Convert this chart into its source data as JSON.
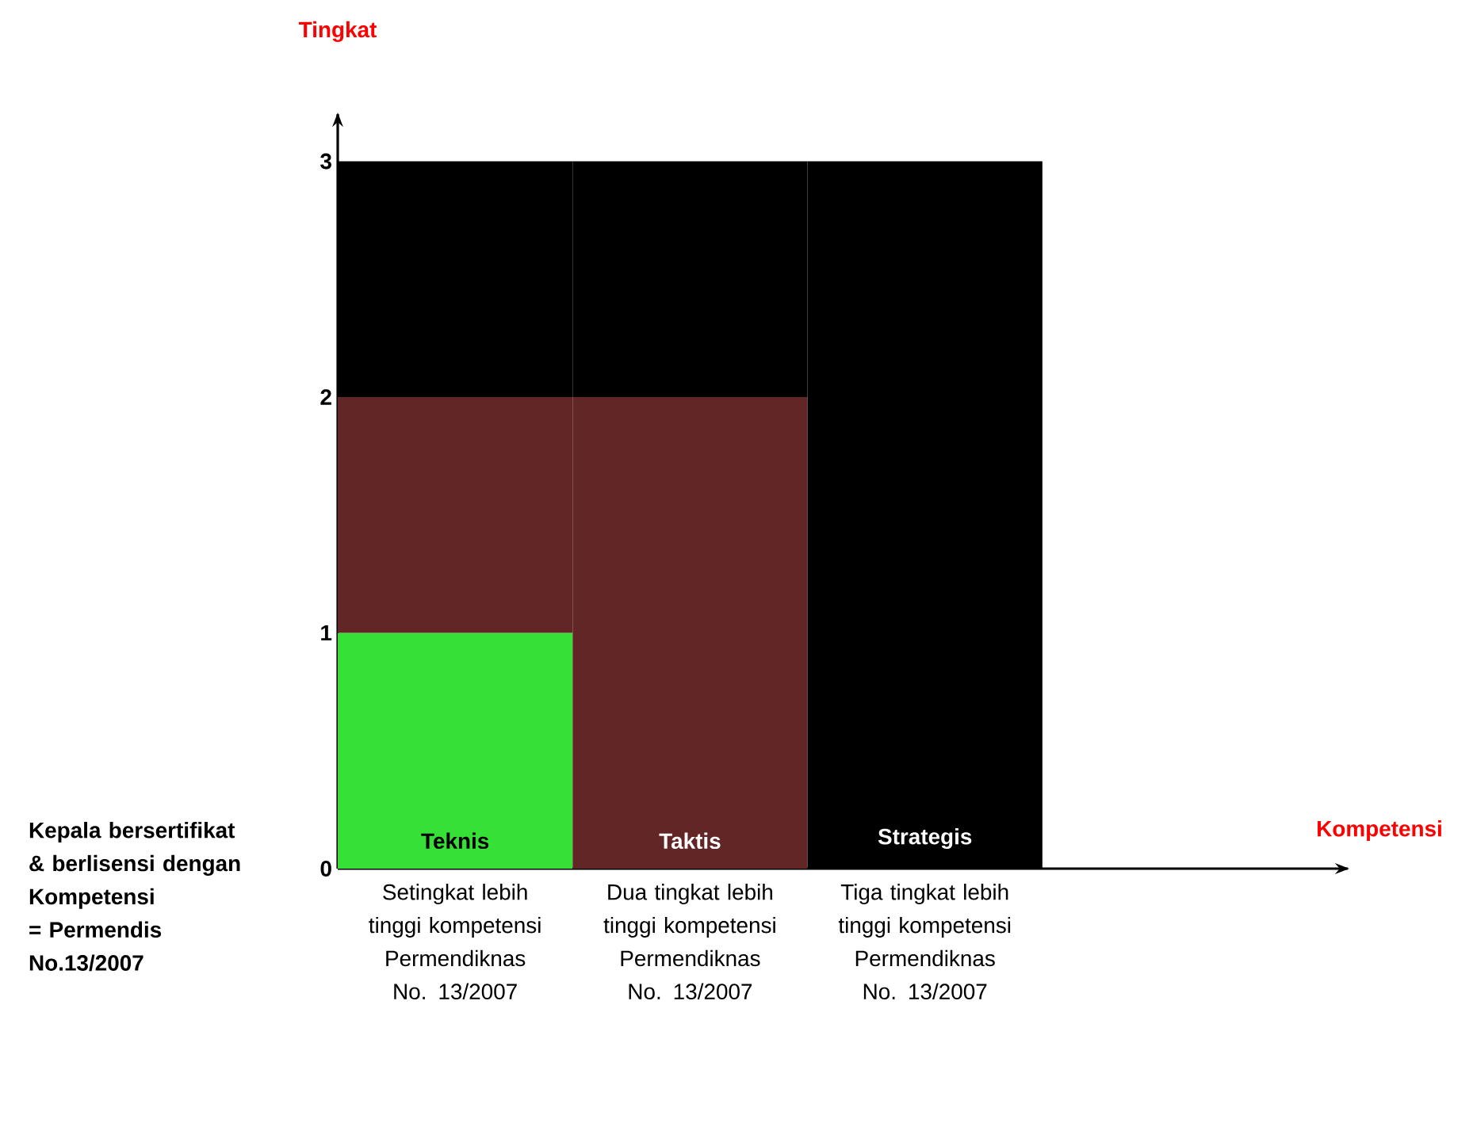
{
  "chart_data": {
    "type": "bar",
    "stacked": true,
    "ylabel": "Tingkat",
    "categories": [
      "Setingkat lebih tinggi kompetensi Permendiknas No. 13/2007",
      "Dua tingkat lebih tinggi kompetensi Permendiknas No. 13/2007",
      "Tiga tingkat lebih tinggi kompetensi Permendiknas No. 13/2007"
    ],
    "series": [
      {
        "name": "Teknis",
        "color": "#36e036",
        "values": [
          1,
          0,
          0
        ]
      },
      {
        "name": "Taktis",
        "color": "#632626",
        "values": [
          1,
          2,
          0
        ]
      },
      {
        "name": "Strategis",
        "color": "#000000",
        "values": [
          1,
          1,
          3
        ]
      }
    ],
    "ylim": [
      0,
      3.2
    ],
    "yticks": [
      0,
      1,
      2,
      3
    ],
    "annotations": [
      "Kepala bersertifikat & berlisensi dengan Kompetensi = Permendis No.13/2007",
      "Kompetensi"
    ]
  }
}
